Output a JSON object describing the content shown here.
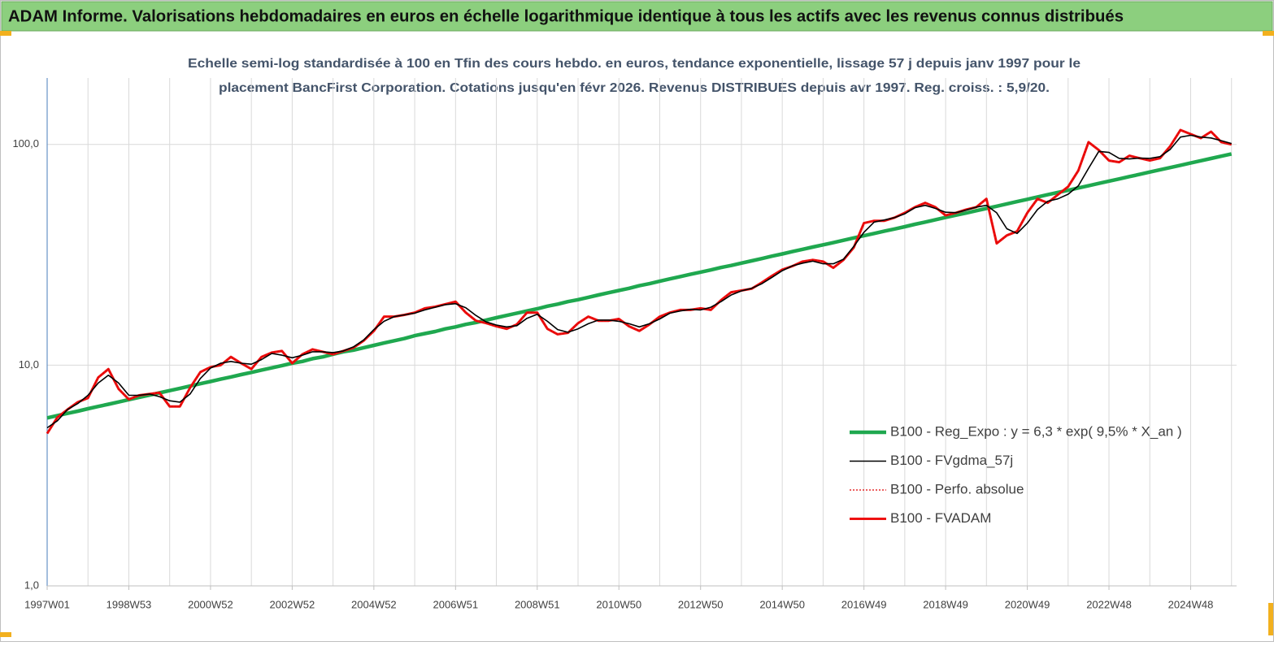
{
  "header": {
    "title": "ADAM Informe. Valorisations hebdomadaires en euros en échelle logarithmique identique à tous les actifs avec les revenus connus distribués"
  },
  "chart_data": {
    "type": "line",
    "subtitle": [
      "Echelle semi-log standardisée à 100 en Tfin des cours hebdo. en euros, tendance exponentielle, lissage 57 j depuis janv 1997 pour le",
      "placement BancFirst Corporation. Cotations jusqu'en févr 2026. Revenus  DISTRIBUES depuis avr 1997. Reg. croiss. : 5,9/20."
    ],
    "log_scale": true,
    "grid": true,
    "legend": "lower-right",
    "ylim": [
      1,
      200
    ],
    "yticks": [
      {
        "value": 1,
        "label": "1,0"
      },
      {
        "value": 10,
        "label": "10,0"
      },
      {
        "value": 100,
        "label": "100,0"
      }
    ],
    "categories": [
      "1997W01",
      null,
      null,
      null,
      null,
      null,
      null,
      null,
      "1998W53",
      null,
      null,
      null,
      null,
      null,
      null,
      null,
      "2000W52",
      null,
      null,
      null,
      null,
      null,
      null,
      null,
      "2002W52",
      null,
      null,
      null,
      null,
      null,
      null,
      null,
      "2004W52",
      null,
      null,
      null,
      null,
      null,
      null,
      null,
      "2006W51",
      null,
      null,
      null,
      null,
      null,
      null,
      null,
      "2008W51",
      null,
      null,
      null,
      null,
      null,
      null,
      null,
      "2010W50",
      null,
      null,
      null,
      null,
      null,
      null,
      null,
      "2012W50",
      null,
      null,
      null,
      null,
      null,
      null,
      null,
      "2014W50",
      null,
      null,
      null,
      null,
      null,
      null,
      null,
      "2016W49",
      null,
      null,
      null,
      null,
      null,
      null,
      null,
      "2018W49",
      null,
      null,
      null,
      null,
      null,
      null,
      null,
      "2020W49",
      null,
      null,
      null,
      null,
      null,
      null,
      null,
      "2022W48",
      null,
      null,
      null,
      null,
      null,
      null,
      null,
      "2024W48",
      null,
      null,
      null,
      null
    ],
    "series": [
      {
        "name": "B100 - Reg_Expo : y = 6,3 * exp( 9,5% *  X_an )",
        "color": "#1fa84f",
        "line_style": "solid",
        "values": [
          5.77,
          5.91,
          6.05,
          6.19,
          6.35,
          6.5,
          6.65,
          6.81,
          6.98,
          7.14,
          7.31,
          7.49,
          7.67,
          7.85,
          8.04,
          8.24,
          8.43,
          8.64,
          8.84,
          9.06,
          9.27,
          9.5,
          9.72,
          9.96,
          10.2,
          10.4,
          10.7,
          10.9,
          11.2,
          11.5,
          11.7,
          12.0,
          12.3,
          12.6,
          12.9,
          13.2,
          13.6,
          13.9,
          14.2,
          14.6,
          14.9,
          15.3,
          15.6,
          16.0,
          16.4,
          16.8,
          17.2,
          17.6,
          18.0,
          18.5,
          18.9,
          19.4,
          19.8,
          20.3,
          20.8,
          21.3,
          21.8,
          22.3,
          22.9,
          23.4,
          24.0,
          24.6,
          25.2,
          25.8,
          26.4,
          27.0,
          27.7,
          28.3,
          29.0,
          29.7,
          30.4,
          31.2,
          31.9,
          32.7,
          33.5,
          34.3,
          35.1,
          35.9,
          36.8,
          37.7,
          38.6,
          39.5,
          40.5,
          41.4,
          42.4,
          43.5,
          44.5,
          45.6,
          46.7,
          47.8,
          48.9,
          50.1,
          51.3,
          52.5,
          53.8,
          55.1,
          56.4,
          57.8,
          59.2,
          60.6,
          62.0,
          63.5,
          65.0,
          66.6,
          68.2,
          69.8,
          71.5,
          73.2,
          75.0,
          76.8,
          78.6,
          80.5,
          82.4,
          84.4,
          86.4,
          88.5,
          90.6
        ]
      },
      {
        "name": "B100 - FVgdma_57j",
        "color": "#000000",
        "line_style": "solid",
        "values": [
          5.2,
          5.6,
          6.3,
          6.7,
          7.3,
          8.3,
          9.0,
          8.3,
          7.3,
          7.3,
          7.4,
          7.2,
          6.9,
          6.8,
          7.4,
          8.7,
          9.7,
          10.2,
          10.4,
          10.2,
          10.1,
          10.6,
          11.3,
          11.1,
          10.8,
          11.1,
          11.5,
          11.5,
          11.4,
          11.6,
          12.1,
          13.0,
          14.5,
          15.8,
          16.6,
          16.9,
          17.2,
          17.8,
          18.3,
          18.8,
          19.0,
          18.2,
          16.8,
          15.7,
          15.2,
          14.9,
          15.1,
          16.3,
          17.0,
          15.8,
          14.5,
          14.1,
          14.6,
          15.4,
          16.0,
          16.0,
          15.8,
          15.4,
          14.9,
          15.4,
          16.2,
          17.2,
          17.6,
          17.9,
          17.8,
          18.3,
          19.4,
          20.8,
          21.7,
          22.3,
          23.4,
          25.0,
          26.8,
          28.2,
          29.0,
          29.6,
          28.8,
          28.8,
          30.2,
          34.5,
          40.0,
          44.5,
          45.5,
          46.6,
          48.5,
          51.7,
          53.0,
          51.3,
          49.3,
          49.1,
          50.4,
          52.0,
          53.0,
          49.0,
          41.5,
          39.5,
          44.0,
          50.7,
          55.3,
          56.7,
          59.5,
          65.0,
          78.0,
          93.0,
          92.0,
          86.5,
          86.0,
          86.8,
          86.5,
          88.0,
          95.0,
          108.0,
          110.0,
          108.0,
          107.0,
          104.0,
          101.0
        ]
      },
      {
        "name": "B100 - Perfo. absolue",
        "color": "#e00000",
        "line_style": "dotted",
        "values": [
          4.9,
          5.8,
          6.3,
          6.8,
          7.1,
          8.8,
          9.6,
          7.8,
          7.0,
          7.3,
          7.4,
          7.5,
          6.5,
          6.5,
          7.9,
          9.3,
          9.8,
          10.0,
          10.9,
          10.2,
          9.6,
          10.9,
          11.4,
          11.6,
          10.2,
          11.2,
          11.8,
          11.5,
          11.2,
          11.6,
          12.0,
          12.9,
          14.3,
          16.6,
          16.6,
          16.9,
          17.3,
          18.1,
          18.4,
          18.9,
          19.4,
          17.3,
          15.9,
          15.5,
          15.0,
          14.6,
          15.3,
          17.3,
          17.3,
          14.6,
          13.8,
          14.0,
          15.5,
          16.6,
          15.9,
          15.9,
          16.2,
          15.0,
          14.3,
          15.3,
          16.6,
          17.3,
          17.8,
          17.8,
          18.1,
          17.8,
          19.7,
          21.4,
          21.8,
          22.2,
          23.7,
          25.4,
          27.1,
          28.1,
          29.5,
          30.0,
          29.5,
          27.6,
          30.0,
          34.1,
          44.0,
          45.1,
          45.1,
          46.6,
          49.0,
          52.0,
          54.4,
          52.0,
          47.7,
          49.0,
          50.7,
          52.0,
          56.7,
          35.6,
          38.7,
          40.4,
          49.0,
          56.7,
          54.4,
          59.2,
          64.4,
          76.2,
          102.5,
          94.3,
          84.5,
          83.1,
          88.9,
          86.6,
          84.5,
          86.6,
          98.3,
          116.3,
          111.4,
          106.8,
          114.3,
          102.5,
          100.0
        ]
      },
      {
        "name": "B100 - FVADAM",
        "color": "#ee1111",
        "line_style": "solid",
        "values": [
          4.9,
          5.8,
          6.3,
          6.8,
          7.1,
          8.8,
          9.6,
          7.8,
          7.0,
          7.3,
          7.4,
          7.5,
          6.5,
          6.5,
          7.9,
          9.3,
          9.8,
          10.0,
          10.9,
          10.2,
          9.6,
          10.9,
          11.4,
          11.6,
          10.2,
          11.2,
          11.8,
          11.5,
          11.2,
          11.6,
          12.0,
          12.9,
          14.3,
          16.6,
          16.6,
          16.9,
          17.3,
          18.1,
          18.4,
          18.9,
          19.4,
          17.3,
          15.9,
          15.5,
          15.0,
          14.6,
          15.3,
          17.3,
          17.3,
          14.6,
          13.8,
          14.0,
          15.5,
          16.6,
          15.9,
          15.9,
          16.2,
          15.0,
          14.3,
          15.3,
          16.6,
          17.3,
          17.8,
          17.8,
          18.1,
          17.8,
          19.7,
          21.4,
          21.8,
          22.2,
          23.7,
          25.4,
          27.1,
          28.1,
          29.5,
          30.0,
          29.5,
          27.6,
          30.0,
          34.1,
          44.0,
          45.1,
          45.1,
          46.6,
          49.0,
          52.0,
          54.4,
          52.0,
          47.7,
          49.0,
          50.7,
          52.0,
          56.7,
          35.6,
          38.7,
          40.4,
          49.0,
          56.7,
          54.4,
          59.2,
          64.4,
          76.2,
          102.5,
          94.3,
          84.5,
          83.1,
          88.9,
          86.6,
          84.5,
          86.6,
          98.3,
          116.3,
          111.4,
          106.8,
          114.3,
          102.5,
          100.0
        ]
      }
    ]
  }
}
